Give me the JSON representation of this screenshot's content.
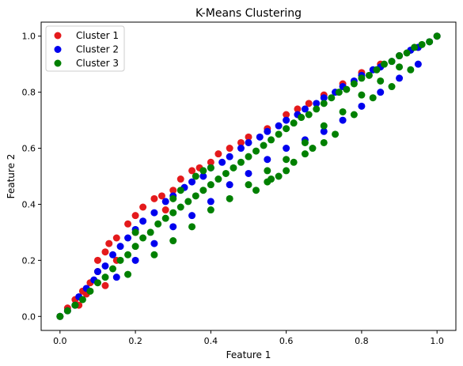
{
  "chart_data": {
    "type": "scatter",
    "title": "K-Means Clustering",
    "xlabel": "Feature 1",
    "ylabel": "Feature 2",
    "xlim": [
      -0.05,
      1.05
    ],
    "ylim": [
      -0.05,
      1.05
    ],
    "xticks": [
      0.0,
      0.2,
      0.4,
      0.6,
      0.8,
      1.0
    ],
    "yticks": [
      0.0,
      0.2,
      0.4,
      0.6,
      0.8,
      1.0
    ],
    "xtick_labels": [
      "0.0",
      "0.2",
      "0.4",
      "0.6",
      "0.8",
      "1.0"
    ],
    "ytick_labels": [
      "0.0",
      "0.2",
      "0.4",
      "0.6",
      "0.8",
      "1.0"
    ],
    "grid": false,
    "legend_position": "top-left",
    "series": [
      {
        "name": "Cluster 1",
        "color": "#e41a1c",
        "points": [
          [
            0.0,
            0.0
          ],
          [
            0.02,
            0.03
          ],
          [
            0.04,
            0.06
          ],
          [
            0.06,
            0.09
          ],
          [
            0.08,
            0.12
          ],
          [
            0.1,
            0.16
          ],
          [
            0.1,
            0.2
          ],
          [
            0.12,
            0.23
          ],
          [
            0.13,
            0.26
          ],
          [
            0.15,
            0.28
          ],
          [
            0.18,
            0.33
          ],
          [
            0.2,
            0.36
          ],
          [
            0.22,
            0.39
          ],
          [
            0.25,
            0.42
          ],
          [
            0.27,
            0.43
          ],
          [
            0.3,
            0.45
          ],
          [
            0.32,
            0.49
          ],
          [
            0.35,
            0.52
          ],
          [
            0.37,
            0.53
          ],
          [
            0.42,
            0.58
          ],
          [
            0.45,
            0.6
          ],
          [
            0.5,
            0.64
          ],
          [
            0.55,
            0.67
          ],
          [
            0.6,
            0.72
          ],
          [
            0.63,
            0.74
          ],
          [
            0.66,
            0.76
          ],
          [
            0.7,
            0.79
          ],
          [
            0.75,
            0.83
          ],
          [
            0.8,
            0.87
          ],
          [
            0.85,
            0.9
          ],
          [
            0.9,
            0.93
          ],
          [
            0.95,
            0.96
          ],
          [
            1.0,
            1.0
          ],
          [
            0.07,
            0.08
          ],
          [
            0.15,
            0.2
          ],
          [
            0.05,
            0.04
          ],
          [
            0.12,
            0.11
          ],
          [
            0.2,
            0.3
          ],
          [
            0.28,
            0.38
          ],
          [
            0.4,
            0.55
          ],
          [
            0.48,
            0.62
          ]
        ]
      },
      {
        "name": "Cluster 2",
        "color": "#0000ee",
        "points": [
          [
            0.0,
            0.0
          ],
          [
            0.02,
            0.02
          ],
          [
            0.04,
            0.04
          ],
          [
            0.05,
            0.07
          ],
          [
            0.07,
            0.1
          ],
          [
            0.09,
            0.13
          ],
          [
            0.1,
            0.16
          ],
          [
            0.12,
            0.18
          ],
          [
            0.14,
            0.22
          ],
          [
            0.16,
            0.25
          ],
          [
            0.18,
            0.28
          ],
          [
            0.2,
            0.31
          ],
          [
            0.22,
            0.34
          ],
          [
            0.25,
            0.37
          ],
          [
            0.28,
            0.41
          ],
          [
            0.3,
            0.43
          ],
          [
            0.33,
            0.46
          ],
          [
            0.35,
            0.48
          ],
          [
            0.38,
            0.5
          ],
          [
            0.4,
            0.53
          ],
          [
            0.43,
            0.55
          ],
          [
            0.45,
            0.57
          ],
          [
            0.48,
            0.6
          ],
          [
            0.5,
            0.62
          ],
          [
            0.53,
            0.64
          ],
          [
            0.55,
            0.66
          ],
          [
            0.58,
            0.68
          ],
          [
            0.6,
            0.7
          ],
          [
            0.63,
            0.72
          ],
          [
            0.65,
            0.74
          ],
          [
            0.68,
            0.76
          ],
          [
            0.7,
            0.78
          ],
          [
            0.73,
            0.8
          ],
          [
            0.75,
            0.82
          ],
          [
            0.78,
            0.84
          ],
          [
            0.8,
            0.86
          ],
          [
            0.83,
            0.88
          ],
          [
            0.85,
            0.89
          ],
          [
            0.88,
            0.91
          ],
          [
            0.9,
            0.93
          ],
          [
            0.93,
            0.95
          ],
          [
            0.95,
            0.96
          ],
          [
            0.98,
            0.98
          ],
          [
            1.0,
            1.0
          ],
          [
            0.45,
            0.47
          ],
          [
            0.5,
            0.51
          ],
          [
            0.55,
            0.56
          ],
          [
            0.6,
            0.6
          ],
          [
            0.65,
            0.63
          ],
          [
            0.7,
            0.66
          ],
          [
            0.75,
            0.7
          ],
          [
            0.8,
            0.75
          ],
          [
            0.85,
            0.8
          ],
          [
            0.9,
            0.85
          ],
          [
            0.95,
            0.9
          ],
          [
            0.3,
            0.32
          ],
          [
            0.35,
            0.36
          ],
          [
            0.4,
            0.41
          ],
          [
            0.25,
            0.26
          ],
          [
            0.2,
            0.2
          ],
          [
            0.15,
            0.14
          ]
        ]
      },
      {
        "name": "Cluster 3",
        "color": "#008000",
        "points": [
          [
            0.0,
            0.0
          ],
          [
            0.02,
            0.02
          ],
          [
            0.04,
            0.04
          ],
          [
            0.06,
            0.06
          ],
          [
            0.08,
            0.09
          ],
          [
            0.1,
            0.12
          ],
          [
            0.12,
            0.14
          ],
          [
            0.14,
            0.17
          ],
          [
            0.16,
            0.2
          ],
          [
            0.18,
            0.22
          ],
          [
            0.2,
            0.25
          ],
          [
            0.22,
            0.28
          ],
          [
            0.24,
            0.3
          ],
          [
            0.26,
            0.33
          ],
          [
            0.28,
            0.35
          ],
          [
            0.3,
            0.37
          ],
          [
            0.32,
            0.39
          ],
          [
            0.34,
            0.41
          ],
          [
            0.36,
            0.43
          ],
          [
            0.38,
            0.45
          ],
          [
            0.4,
            0.47
          ],
          [
            0.42,
            0.49
          ],
          [
            0.44,
            0.51
          ],
          [
            0.46,
            0.53
          ],
          [
            0.48,
            0.55
          ],
          [
            0.5,
            0.57
          ],
          [
            0.52,
            0.59
          ],
          [
            0.54,
            0.61
          ],
          [
            0.56,
            0.63
          ],
          [
            0.58,
            0.65
          ],
          [
            0.6,
            0.67
          ],
          [
            0.62,
            0.69
          ],
          [
            0.64,
            0.71
          ],
          [
            0.66,
            0.72
          ],
          [
            0.68,
            0.74
          ],
          [
            0.7,
            0.76
          ],
          [
            0.72,
            0.78
          ],
          [
            0.74,
            0.8
          ],
          [
            0.76,
            0.81
          ],
          [
            0.78,
            0.83
          ],
          [
            0.8,
            0.85
          ],
          [
            0.82,
            0.86
          ],
          [
            0.84,
            0.88
          ],
          [
            0.86,
            0.9
          ],
          [
            0.88,
            0.91
          ],
          [
            0.9,
            0.93
          ],
          [
            0.92,
            0.94
          ],
          [
            0.94,
            0.96
          ],
          [
            0.96,
            0.97
          ],
          [
            0.98,
            0.98
          ],
          [
            1.0,
            1.0
          ],
          [
            0.3,
            0.42
          ],
          [
            0.32,
            0.45
          ],
          [
            0.36,
            0.5
          ],
          [
            0.38,
            0.52
          ],
          [
            0.4,
            0.53
          ],
          [
            0.2,
            0.3
          ],
          [
            0.18,
            0.15
          ],
          [
            0.25,
            0.22
          ],
          [
            0.3,
            0.27
          ],
          [
            0.35,
            0.32
          ],
          [
            0.4,
            0.38
          ],
          [
            0.45,
            0.42
          ],
          [
            0.5,
            0.47
          ],
          [
            0.55,
            0.52
          ],
          [
            0.6,
            0.56
          ],
          [
            0.65,
            0.62
          ],
          [
            0.7,
            0.68
          ],
          [
            0.75,
            0.73
          ],
          [
            0.8,
            0.79
          ],
          [
            0.85,
            0.84
          ],
          [
            0.9,
            0.89
          ],
          [
            0.55,
            0.48
          ],
          [
            0.58,
            0.5
          ],
          [
            0.62,
            0.55
          ],
          [
            0.67,
            0.6
          ],
          [
            0.73,
            0.65
          ],
          [
            0.78,
            0.72
          ],
          [
            0.83,
            0.78
          ],
          [
            0.88,
            0.82
          ],
          [
            0.93,
            0.88
          ],
          [
            0.7,
            0.62
          ],
          [
            0.65,
            0.58
          ],
          [
            0.6,
            0.52
          ],
          [
            0.56,
            0.49
          ],
          [
            0.52,
            0.45
          ]
        ]
      }
    ]
  }
}
